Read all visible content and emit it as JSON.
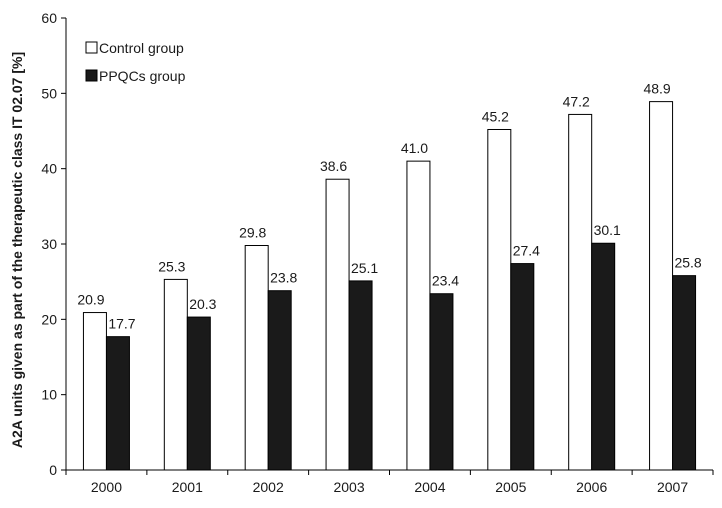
{
  "chart_data": {
    "type": "bar",
    "categories": [
      "2000",
      "2001",
      "2002",
      "2003",
      "2004",
      "2005",
      "2006",
      "2007"
    ],
    "series": [
      {
        "name": "Control group",
        "values": [
          20.9,
          25.3,
          29.8,
          38.6,
          41.0,
          45.2,
          47.2,
          48.9
        ],
        "labels": [
          "20.9",
          "25.3",
          "29.8",
          "38.6",
          "41.0",
          "45.2",
          "47.2",
          "48.9"
        ],
        "fill": "#ffffff",
        "stroke": "#000000"
      },
      {
        "name": "PPQCs group",
        "values": [
          17.7,
          20.3,
          23.8,
          25.1,
          23.4,
          27.4,
          30.1,
          25.8
        ],
        "labels": [
          "17.7",
          "20.3",
          "23.8",
          "25.1",
          "23.4",
          "27.4",
          "30.1",
          "25.8"
        ],
        "fill": "#1a1a1a",
        "stroke": "#000000"
      }
    ],
    "ylabel": "A2A units given as part of the therapeutic class IT 02.07 [%]",
    "xlabel": "",
    "ylim": [
      0,
      60
    ],
    "yticks": [
      "0",
      "10",
      "20",
      "30",
      "40",
      "50",
      "60"
    ],
    "legend_position": "top-left",
    "grid": false
  }
}
